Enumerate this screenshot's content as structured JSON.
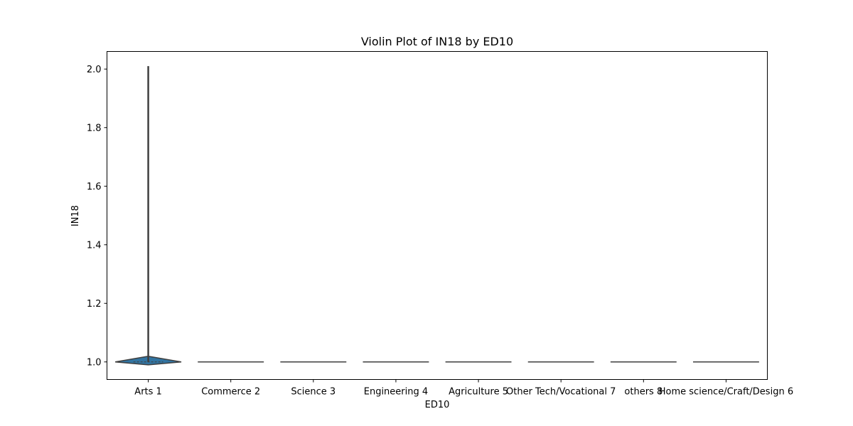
{
  "chart_data": {
    "type": "violin",
    "title": "Violin Plot of IN18 by ED10",
    "xlabel": "ED10",
    "ylabel": "IN18",
    "categories": [
      "Arts 1",
      "Commerce 2",
      "Science 3",
      "Engineering 4",
      "Agriculture 5",
      "Other Tech/Vocational 7",
      "others 8",
      "Home science/Craft/Design 6"
    ],
    "y_ticks": [
      "1.0",
      "1.2",
      "1.4",
      "1.6",
      "1.8",
      "2.0"
    ],
    "ylim": [
      0.94,
      2.06
    ],
    "grid": false,
    "series": [
      {
        "category": "Arts 1",
        "min": 0.99,
        "max": 2.01,
        "median": 1.0,
        "has_body": true
      },
      {
        "category": "Commerce 2",
        "min": 1.0,
        "max": 1.0,
        "median": 1.0,
        "has_body": false
      },
      {
        "category": "Science 3",
        "min": 1.0,
        "max": 1.0,
        "median": 1.0,
        "has_body": false
      },
      {
        "category": "Engineering 4",
        "min": 1.0,
        "max": 1.0,
        "median": 1.0,
        "has_body": false
      },
      {
        "category": "Agriculture 5",
        "min": 1.0,
        "max": 1.0,
        "median": 1.0,
        "has_body": false
      },
      {
        "category": "Other Tech/Vocational 7",
        "min": 1.0,
        "max": 1.0,
        "median": 1.0,
        "has_body": false
      },
      {
        "category": "others 8",
        "min": 1.0,
        "max": 1.0,
        "median": 1.0,
        "has_body": false
      },
      {
        "category": "Home science/Craft/Design 6",
        "min": 1.0,
        "max": 1.0,
        "median": 1.0,
        "has_body": false
      }
    ],
    "colors": {
      "violin_fill": "#3274a1",
      "edge": "#3f3f3f",
      "axis": "#000000"
    }
  }
}
